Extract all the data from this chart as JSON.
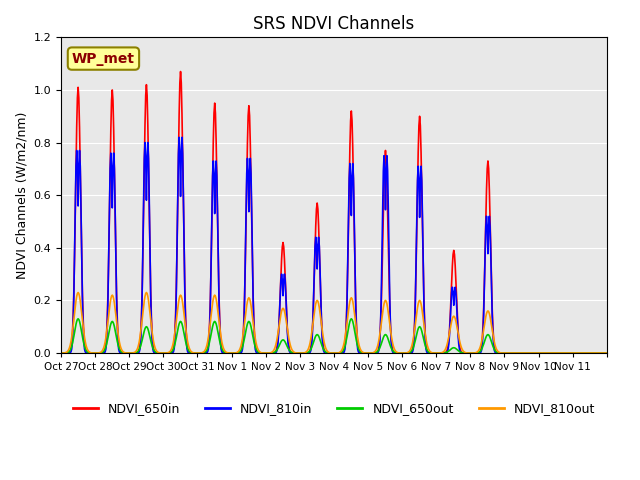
{
  "title": "SRS NDVI Channels",
  "ylabel": "NDVI Channels (W/m2/nm)",
  "background_color": "#e8e8e8",
  "facecolor": "#ffffff",
  "annotation_text": "WP_met",
  "annotation_bg": "#ffff99",
  "annotation_border": "#8B8000",
  "annotation_text_color": "#8B0000",
  "ylim": [
    0.0,
    1.2
  ],
  "yticks": [
    0.0,
    0.2,
    0.4,
    0.6,
    0.8,
    1.0,
    1.2
  ],
  "xtick_labels": [
    "Oct 27",
    "Oct 28",
    "Oct 29",
    "Oct 30",
    "Oct 31",
    "Nov 1",
    "Nov 2",
    "Nov 3",
    "Nov 4",
    "Nov 5",
    "Nov 6",
    "Nov 7",
    "Nov 8",
    "Nov 9",
    "Nov 10",
    "Nov 11"
  ],
  "series": {
    "NDVI_650in": {
      "color": "#ff0000",
      "linewidth": 1.2
    },
    "NDVI_810in": {
      "color": "#0000ff",
      "linewidth": 1.2
    },
    "NDVI_650out": {
      "color": "#00cc00",
      "linewidth": 1.2
    },
    "NDVI_810out": {
      "color": "#ff9900",
      "linewidth": 1.2
    }
  },
  "daily_peaks": {
    "NDVI_650in": [
      1.01,
      1.0,
      1.02,
      1.07,
      0.95,
      0.94,
      0.42,
      0.57,
      0.92,
      0.77,
      0.9,
      0.39,
      0.73,
      0.0,
      0.0,
      0.0
    ],
    "NDVI_810in": [
      0.77,
      0.76,
      0.8,
      0.82,
      0.73,
      0.74,
      0.3,
      0.44,
      0.72,
      0.75,
      0.71,
      0.25,
      0.52,
      0.0,
      0.0,
      0.0
    ],
    "NDVI_650out": [
      0.13,
      0.12,
      0.1,
      0.12,
      0.12,
      0.12,
      0.05,
      0.07,
      0.13,
      0.07,
      0.1,
      0.02,
      0.07,
      0.0,
      0.0,
      0.0
    ],
    "NDVI_810out": [
      0.23,
      0.22,
      0.23,
      0.22,
      0.22,
      0.21,
      0.17,
      0.2,
      0.21,
      0.2,
      0.2,
      0.14,
      0.16,
      0.0,
      0.0,
      0.0
    ]
  }
}
